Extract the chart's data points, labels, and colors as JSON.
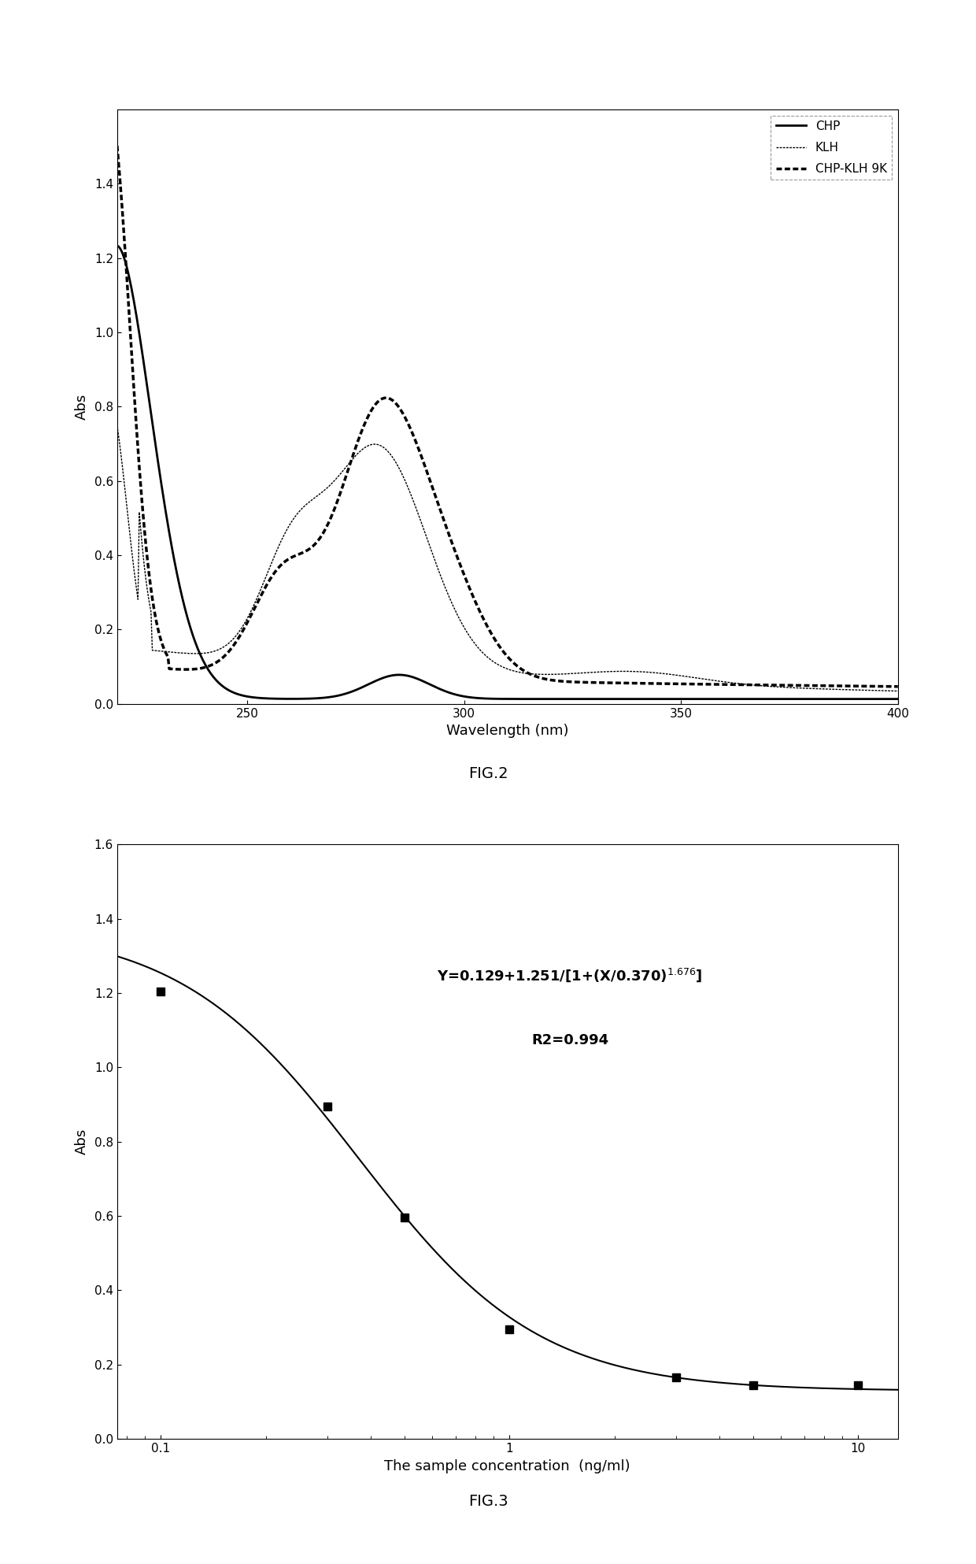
{
  "fig2": {
    "xlabel": "Wavelength (nm)",
    "ylabel": "Abs",
    "xlim": [
      220,
      400
    ],
    "ylim": [
      0.0,
      1.6
    ],
    "yticks": [
      0.0,
      0.2,
      0.4,
      0.6,
      0.8,
      1.0,
      1.2,
      1.4
    ],
    "xticks": [
      250,
      300,
      350,
      400
    ],
    "title": "FIG.2"
  },
  "fig3": {
    "xlabel": "The sample concentration  (ng/ml)",
    "ylabel": "Abs",
    "xlim": [
      0.075,
      13
    ],
    "ylim": [
      0.0,
      1.6
    ],
    "yticks": [
      0.0,
      0.2,
      0.4,
      0.6,
      0.8,
      1.0,
      1.2,
      1.4,
      1.6
    ],
    "xticks": [
      0.1,
      1,
      10
    ],
    "xticklabels": [
      "0.1",
      "1",
      "10"
    ],
    "data_x": [
      0.1,
      0.3,
      0.5,
      1.0,
      3.0,
      5.0,
      10.0
    ],
    "data_y": [
      1.205,
      0.895,
      0.595,
      0.295,
      0.165,
      0.145,
      0.145
    ],
    "title": "FIG.3",
    "a": 0.129,
    "b": 1.251,
    "c": 0.37,
    "d": 1.676
  }
}
